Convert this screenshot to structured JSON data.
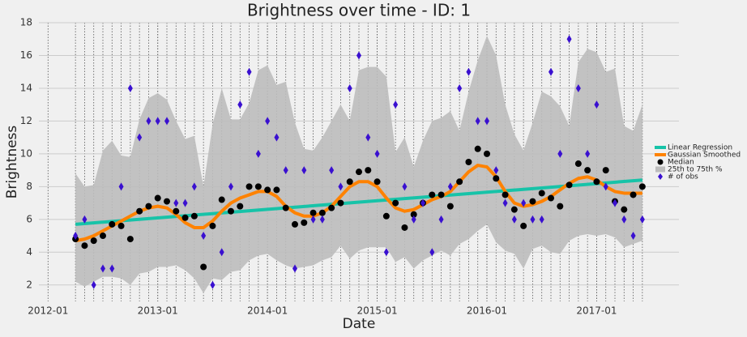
{
  "chart_data": {
    "type": "line",
    "title": "Brightness over time - ID: 1",
    "xlabel": "Date",
    "ylabel": "Brightness",
    "xlim": [
      "2011-12",
      "2017-10"
    ],
    "xticks": [
      "2012-01",
      "2013-01",
      "2014-01",
      "2015-01",
      "2016-01",
      "2017-01"
    ],
    "ylim": [
      1,
      18
    ],
    "yticks": [
      2,
      4,
      6,
      8,
      10,
      12,
      14,
      16,
      18
    ],
    "grid": true,
    "legend": "right",
    "x": [
      "2012-04",
      "2012-05",
      "2012-06",
      "2012-07",
      "2012-08",
      "2012-09",
      "2012-10",
      "2012-11",
      "2012-12",
      "2013-01",
      "2013-02",
      "2013-03",
      "2013-04",
      "2013-05",
      "2013-06",
      "2013-07",
      "2013-08",
      "2013-09",
      "2013-10",
      "2013-11",
      "2013-12",
      "2014-01",
      "2014-02",
      "2014-03",
      "2014-04",
      "2014-05",
      "2014-06",
      "2014-07",
      "2014-08",
      "2014-09",
      "2014-10",
      "2014-11",
      "2014-12",
      "2015-01",
      "2015-02",
      "2015-03",
      "2015-04",
      "2015-05",
      "2015-06",
      "2015-07",
      "2015-08",
      "2015-09",
      "2015-10",
      "2015-11",
      "2015-12",
      "2016-01",
      "2016-02",
      "2016-03",
      "2016-04",
      "2016-05",
      "2016-06",
      "2016-07",
      "2016-08",
      "2016-09",
      "2016-10",
      "2016-11",
      "2016-12",
      "2017-01",
      "2017-02",
      "2017-03",
      "2017-04",
      "2017-05",
      "2017-06"
    ],
    "series": [
      {
        "name": "Linear Regression",
        "type": "line",
        "color": "#17c3a8",
        "x": [
          "2012-04",
          "2017-06"
        ],
        "values": [
          5.7,
          8.4
        ]
      },
      {
        "name": "Gaussian Smoothed",
        "type": "line",
        "color": "#ff8200",
        "values": [
          4.7,
          4.8,
          5.0,
          5.3,
          5.6,
          5.9,
          6.2,
          6.5,
          6.7,
          6.8,
          6.7,
          6.3,
          5.8,
          5.5,
          5.5,
          5.9,
          6.5,
          7.0,
          7.3,
          7.5,
          7.7,
          7.7,
          7.4,
          6.8,
          6.4,
          6.2,
          6.2,
          6.4,
          6.8,
          7.4,
          8.0,
          8.3,
          8.3,
          8.0,
          7.3,
          6.7,
          6.5,
          6.6,
          6.9,
          7.2,
          7.4,
          7.7,
          8.3,
          8.9,
          9.3,
          9.2,
          8.6,
          7.7,
          7.0,
          6.8,
          6.9,
          7.1,
          7.4,
          7.8,
          8.2,
          8.5,
          8.6,
          8.4,
          8.0,
          7.7,
          7.6,
          7.6,
          7.6
        ]
      },
      {
        "name": "Median",
        "type": "scatter",
        "marker": "circle",
        "color": "#000000",
        "values": [
          4.8,
          4.4,
          4.7,
          5.0,
          5.7,
          5.6,
          4.8,
          6.5,
          6.8,
          7.3,
          7.1,
          6.5,
          6.1,
          6.2,
          3.1,
          5.6,
          7.2,
          6.5,
          6.8,
          8.0,
          8.0,
          7.8,
          7.8,
          6.7,
          5.7,
          5.8,
          6.4,
          6.4,
          6.7,
          7.0,
          8.3,
          8.9,
          9.0,
          8.3,
          6.2,
          7.0,
          5.5,
          6.3,
          7.0,
          7.5,
          7.5,
          6.8,
          8.3,
          9.5,
          10.3,
          10.0,
          8.5,
          7.5,
          6.6,
          5.6,
          7.1,
          7.6,
          7.3,
          6.8,
          8.1,
          9.4,
          9.0,
          8.3,
          9.0,
          7.1,
          6.6,
          7.5,
          8.0
        ]
      },
      {
        "name": "25th to 75th %",
        "type": "band",
        "color": "#bdbdbd",
        "upper": [
          8.8,
          8.0,
          8.1,
          10.2,
          10.8,
          9.9,
          9.8,
          12.1,
          13.4,
          13.7,
          13.3,
          12.0,
          10.9,
          11.1,
          8.0,
          11.8,
          14.0,
          12.1,
          12.1,
          13.1,
          15.1,
          15.4,
          14.2,
          14.4,
          11.9,
          10.3,
          10.2,
          11.0,
          12.0,
          13.0,
          12.0,
          15.1,
          15.3,
          15.3,
          14.7,
          10.1,
          11.0,
          9.2,
          10.8,
          12.0,
          12.2,
          12.6,
          11.4,
          13.8,
          15.7,
          17.2,
          16.0,
          13.0,
          11.2,
          10.2,
          11.9,
          13.8,
          13.5,
          12.9,
          11.7,
          15.6,
          16.4,
          16.2,
          15.0,
          15.2,
          11.7,
          11.4,
          13.0
        ],
        "lower": [
          2.2,
          1.9,
          2.2,
          2.5,
          2.5,
          2.4,
          2.0,
          2.7,
          2.8,
          3.1,
          3.1,
          3.2,
          2.9,
          2.4,
          1.5,
          2.4,
          2.3,
          2.8,
          2.9,
          3.5,
          3.8,
          3.9,
          3.5,
          3.2,
          3.0,
          3.1,
          3.2,
          3.5,
          3.7,
          4.4,
          3.6,
          4.1,
          4.3,
          4.3,
          4.3,
          3.4,
          3.7,
          3.0,
          3.5,
          3.8,
          4.1,
          3.8,
          4.5,
          4.8,
          5.3,
          5.7,
          4.6,
          4.1,
          3.9,
          3.0,
          4.2,
          4.4,
          4.0,
          3.9,
          4.7,
          5.0,
          5.1,
          5.0,
          5.1,
          4.9,
          4.3,
          4.5,
          4.7
        ]
      },
      {
        "name": "# of obs",
        "type": "scatter",
        "marker": "diamond",
        "color": "#3a10d0",
        "values": [
          5,
          6,
          2,
          3,
          3,
          8,
          14,
          11,
          12,
          12,
          12,
          7,
          7,
          8,
          5,
          2,
          4,
          8,
          13,
          15,
          10,
          12,
          11,
          9,
          3,
          9,
          6,
          6,
          9,
          8,
          14,
          16,
          11,
          10,
          4,
          13,
          8,
          6,
          7,
          4,
          6,
          8,
          14,
          15,
          12,
          12,
          9,
          7,
          6,
          7,
          6,
          6,
          15,
          10,
          17,
          14,
          10,
          13,
          8,
          7,
          6,
          5,
          6
        ]
      }
    ]
  }
}
